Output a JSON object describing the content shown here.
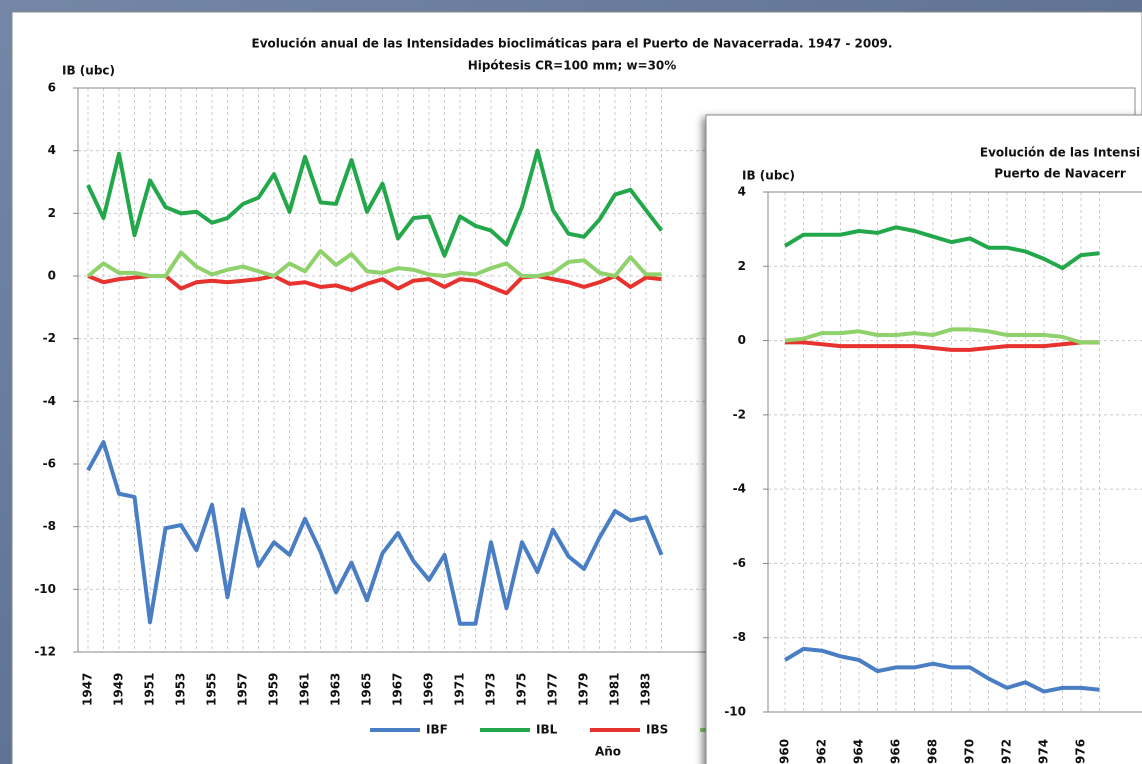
{
  "chart_data": [
    {
      "type": "line",
      "title": "Evolución anual de las Intensidades bioclimáticas para el Puerto de Navacerrada. 1947 - 2009.",
      "subtitle": "Hipótesis CR=100 mm; w=30%",
      "y_label": "IB (ubc)",
      "x_label": "Año",
      "categories": [
        "1947",
        null,
        "1949",
        null,
        "1951",
        null,
        "1953",
        null,
        "1955",
        null,
        "1957",
        null,
        "1959",
        null,
        "1961",
        null,
        "1963",
        null,
        "1965",
        null,
        "1967",
        null,
        "1969",
        null,
        "1971",
        null,
        "1973",
        null,
        "1975",
        null,
        "1977",
        null,
        "1979",
        null,
        "1981",
        null,
        "1983",
        null
      ],
      "ylim": [
        -12,
        6
      ],
      "yticks": [
        -12,
        -10,
        -8,
        -6,
        -4,
        -2,
        0,
        2,
        4,
        6
      ],
      "grid": true,
      "series": [
        {
          "name": "IBF",
          "color": "#4a7ec4",
          "values": [
            -6.2,
            -5.3,
            -6.95,
            -7.05,
            -11.05,
            -8.05,
            -7.95,
            -8.75,
            -7.3,
            -10.25,
            -7.45,
            -9.25,
            -8.5,
            -8.9,
            -7.75,
            -8.8,
            -10.1,
            -9.15,
            -10.35,
            -8.85,
            -8.2,
            -9.1,
            -9.7,
            -8.9,
            -11.1,
            -11.1,
            -8.5,
            -10.6,
            -8.5,
            -9.45,
            -8.1,
            -8.95,
            -9.35,
            -8.35,
            -7.5,
            -7.8,
            -7.7,
            -8.9
          ]
        },
        {
          "name": "IBL",
          "color": "#22a84a",
          "values": [
            2.9,
            1.85,
            3.9,
            1.3,
            3.05,
            2.2,
            2.0,
            2.05,
            1.7,
            1.85,
            2.3,
            2.5,
            3.25,
            2.05,
            3.8,
            2.35,
            2.3,
            3.7,
            2.05,
            2.95,
            1.2,
            1.85,
            1.9,
            0.65,
            1.9,
            1.6,
            1.45,
            1.0,
            2.2,
            4.0,
            2.1,
            1.35,
            1.25,
            1.8,
            2.6,
            2.75,
            2.1,
            1.45
          ]
        },
        {
          "name": "IBS",
          "color": "#e8322e",
          "values": [
            0,
            -0.2,
            -0.1,
            -0.05,
            0,
            0,
            -0.4,
            -0.2,
            -0.15,
            -0.2,
            -0.15,
            -0.1,
            0,
            -0.25,
            -0.2,
            -0.35,
            -0.3,
            -0.45,
            -0.25,
            -0.1,
            -0.4,
            -0.15,
            -0.1,
            -0.35,
            -0.1,
            -0.15,
            -0.35,
            -0.55,
            -0.05,
            0,
            -0.1,
            -0.2,
            -0.35,
            -0.2,
            0,
            -0.35,
            -0.05,
            -0.1
          ]
        },
        {
          "color": "#8fd16a",
          "values": [
            0,
            0.4,
            0.1,
            0.1,
            0,
            0,
            0.75,
            0.3,
            0.05,
            0.2,
            0.3,
            0.15,
            0,
            0.4,
            0.15,
            0.8,
            0.35,
            0.7,
            0.15,
            0.1,
            0.25,
            0.2,
            0.05,
            0,
            0.1,
            0.05,
            0.25,
            0.4,
            0,
            0,
            0.1,
            0.45,
            0.5,
            0.1,
            0,
            0.6,
            0.05,
            0.05
          ]
        }
      ]
    },
    {
      "type": "line",
      "title": "Evolución de las Intensi",
      "subtitle": "Puerto de Navacerr",
      "y_label": "IB (ubc)",
      "categories": [
        "960",
        null,
        "962",
        null,
        "964",
        null,
        "966",
        null,
        "968",
        null,
        "970",
        null,
        "972",
        null,
        "974",
        null,
        "976",
        null
      ],
      "ylim": [
        -10,
        4
      ],
      "yticks": [
        -10,
        -8,
        -6,
        -4,
        -2,
        0,
        2,
        4
      ],
      "grid": true,
      "series": [
        {
          "color": "#4a7ec4",
          "values": [
            -8.6,
            -8.3,
            -8.35,
            -8.5,
            -8.6,
            -8.9,
            -8.8,
            -8.8,
            -8.7,
            -8.8,
            -8.8,
            -9.1,
            -9.35,
            -9.2,
            -9.45,
            -9.35,
            -9.35,
            -9.4
          ]
        },
        {
          "color": "#22a84a",
          "values": [
            2.55,
            2.85,
            2.85,
            2.85,
            2.95,
            2.9,
            3.05,
            2.95,
            2.8,
            2.65,
            2.75,
            2.5,
            2.5,
            2.4,
            2.2,
            1.95,
            2.3,
            2.35
          ]
        },
        {
          "color": "#e8322e",
          "values": [
            -0.05,
            -0.05,
            -0.1,
            -0.15,
            -0.15,
            -0.15,
            -0.15,
            -0.15,
            -0.2,
            -0.25,
            -0.25,
            -0.2,
            -0.15,
            -0.15,
            -0.15,
            -0.1,
            -0.05,
            -0.05
          ]
        },
        {
          "color": "#8fd16a",
          "values": [
            0,
            0.05,
            0.2,
            0.2,
            0.25,
            0.15,
            0.15,
            0.2,
            0.15,
            0.3,
            0.3,
            0.25,
            0.15,
            0.15,
            0.15,
            0.1,
            -0.05,
            -0.05
          ]
        }
      ]
    }
  ]
}
